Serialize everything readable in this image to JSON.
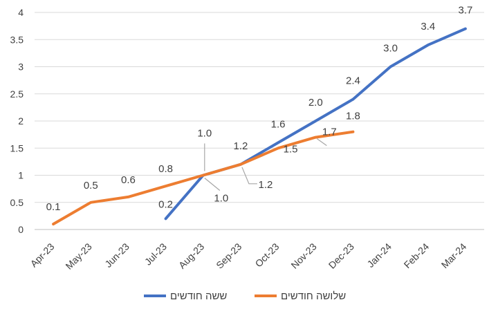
{
  "chart_data": {
    "type": "line",
    "categories": [
      "Apr-23",
      "May-23",
      "Jun-23",
      "Jul-23",
      "Aug-23",
      "Sep-23",
      "Oct-23",
      "Nov-23",
      "Dec-23",
      "Jan-24",
      "Feb-24",
      "Mar-24"
    ],
    "ylim": [
      0,
      4
    ],
    "yticks": [
      "0",
      "0.5",
      "1",
      "1.5",
      "2",
      "2.5",
      "3",
      "3.5",
      "4"
    ],
    "grid": true,
    "legend_position": "bottom",
    "series": [
      {
        "name": "ששה חודשים",
        "color": "#4472C4",
        "values": [
          null,
          null,
          null,
          0.2,
          1.0,
          1.2,
          1.6,
          2.0,
          2.4,
          3.0,
          3.4,
          3.7
        ],
        "labels": [
          "",
          "",
          "",
          "0.2",
          "1.0",
          "1.2",
          "1.6",
          "2.0",
          "2.4",
          "3.0",
          "3.4",
          "3.7"
        ]
      },
      {
        "name": "שלושה חודשים",
        "color": "#ED7D31",
        "values": [
          0.1,
          0.5,
          0.6,
          0.8,
          1.0,
          1.2,
          1.5,
          1.7,
          1.8,
          null,
          null,
          null
        ],
        "labels": [
          "0.1",
          "0.5",
          "0.6",
          "0.8",
          "1.0",
          "1.2",
          "1.5",
          "1.7",
          "1.8",
          "",
          "",
          ""
        ]
      }
    ]
  }
}
